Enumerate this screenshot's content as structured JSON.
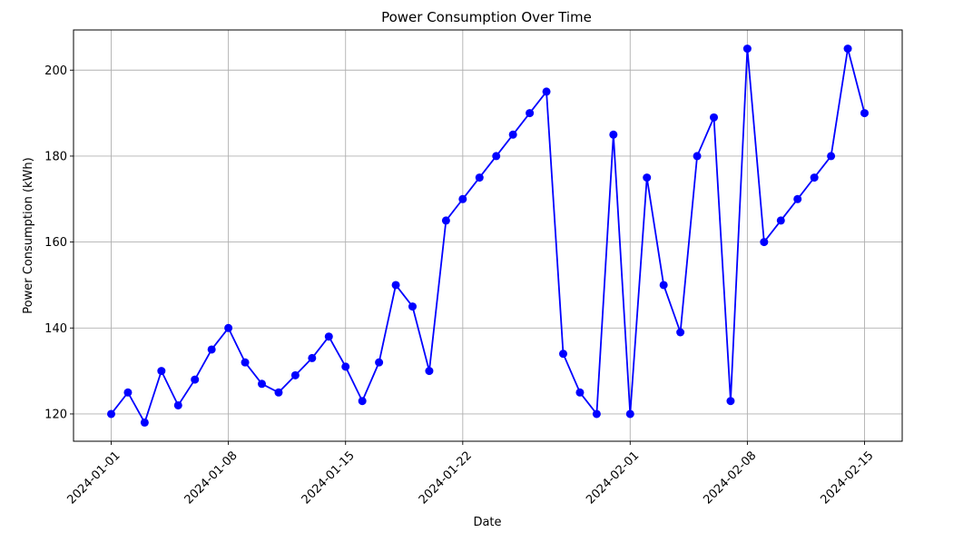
{
  "chart_data": {
    "type": "line",
    "title": "Power Consumption Over Time",
    "xlabel": "Date",
    "ylabel": "Power Consumption (kWh)",
    "x": [
      "2024-01-01",
      "2024-01-02",
      "2024-01-03",
      "2024-01-04",
      "2024-01-05",
      "2024-01-06",
      "2024-01-07",
      "2024-01-08",
      "2024-01-09",
      "2024-01-10",
      "2024-01-11",
      "2024-01-12",
      "2024-01-13",
      "2024-01-14",
      "2024-01-15",
      "2024-01-16",
      "2024-01-17",
      "2024-01-18",
      "2024-01-19",
      "2024-01-20",
      "2024-01-21",
      "2024-01-22",
      "2024-01-23",
      "2024-01-24",
      "2024-01-25",
      "2024-01-26",
      "2024-01-27",
      "2024-01-28",
      "2024-01-29",
      "2024-01-30",
      "2024-01-31",
      "2024-02-01",
      "2024-02-02",
      "2024-02-03",
      "2024-02-04",
      "2024-02-05",
      "2024-02-06",
      "2024-02-07",
      "2024-02-08",
      "2024-02-09",
      "2024-02-10",
      "2024-02-11",
      "2024-02-12",
      "2024-02-13",
      "2024-02-14",
      "2024-02-15"
    ],
    "series": [
      {
        "color": "#0000ff",
        "marker": "circle",
        "values": [
          120,
          125,
          118,
          130,
          122,
          128,
          135,
          140,
          132,
          127,
          125,
          129,
          133,
          138,
          131,
          123,
          132,
          150,
          145,
          130,
          165,
          170,
          175,
          180,
          185,
          190,
          195,
          134,
          125,
          120,
          185,
          120,
          175,
          150,
          139,
          180,
          189,
          123,
          205,
          160,
          165,
          170,
          175,
          180,
          205,
          190
        ]
      }
    ],
    "xticks": [
      "2024-01-01",
      "2024-01-08",
      "2024-01-15",
      "2024-01-22",
      "2024-02-01",
      "2024-02-08",
      "2024-02-15"
    ],
    "yticks": [
      120,
      140,
      160,
      180,
      200
    ],
    "xlim": [
      "2023-12-29T18:00",
      "2024-02-17T06:00"
    ],
    "ylim": [
      113.65,
      209.35
    ],
    "grid": true,
    "legend": "none"
  }
}
